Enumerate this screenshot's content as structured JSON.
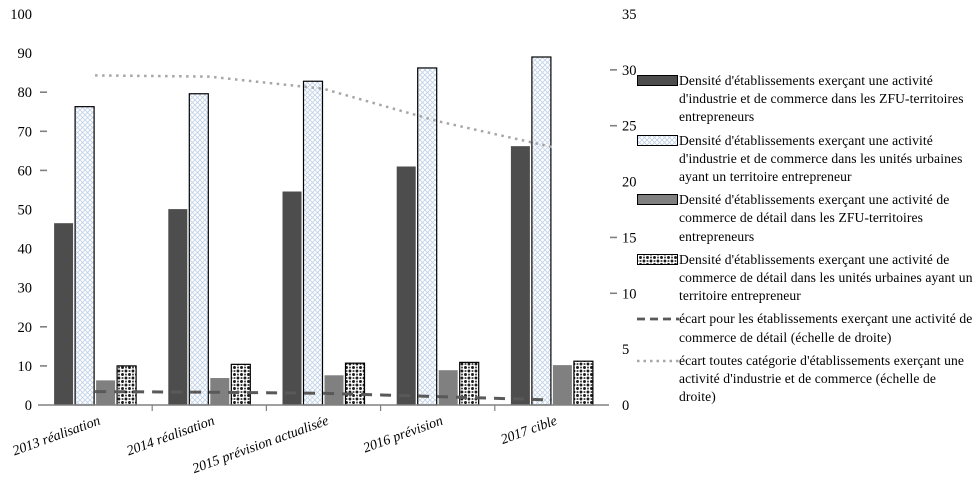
{
  "colors": {
    "bar_dark": "#4d4d4d",
    "bar_gray": "#808080",
    "crosshatch_blue": "#c3d3e6",
    "pattern_black": "#1a1a1a",
    "line_dashed": "#595959",
    "line_dotted": "#a6a6a6",
    "axis_line": "#808080",
    "text": "#000000"
  },
  "chart_data": {
    "type": "bar",
    "subtype": "grouped-bars-with-right-axis-lines",
    "title": "",
    "grid": false,
    "legend_position": "right",
    "categories": [
      "2013 réalisation",
      "2014 réalisation",
      "2015 prévision actualisée",
      "2016 prévision",
      "2017 cible"
    ],
    "left_axis": {
      "min": 0,
      "max": 100,
      "step": 10,
      "tick_labels": [
        0,
        10,
        20,
        30,
        40,
        50,
        60,
        70,
        80,
        90,
        100
      ],
      "ticks_with_dash": [
        10,
        20,
        60,
        70,
        80
      ]
    },
    "right_axis": {
      "min": 0,
      "max": 35,
      "step": 5,
      "tick_labels": [
        0,
        5,
        10,
        15,
        20,
        25,
        30,
        35
      ],
      "ticks_with_dash": [
        10,
        15,
        25,
        30
      ]
    },
    "bar_series": [
      {
        "name": "Densité d'établissements exerçant une activité d'industrie et de commerce dans les ZFU-territoires entrepreneurs",
        "swatch": "bar-dark",
        "values": [
          46.5,
          50.1,
          54.6,
          61.0,
          66.2
        ]
      },
      {
        "name": "Densité d'établissements exerçant une activité d'industrie et de commerce dans les unités urbaines ayant un territoire entrepreneur",
        "swatch": "bar-cross",
        "values": [
          76.3,
          79.6,
          82.8,
          86.2,
          89.0
        ]
      },
      {
        "name": "Densité d'établissements exerçant une activité de commerce de détail dans les ZFU-territoires entrepreneurs",
        "swatch": "bar-gray",
        "values": [
          6.3,
          6.9,
          7.6,
          8.9,
          10.2
        ]
      },
      {
        "name": "Densité d'établissements exerçant une activité de commerce de détail dans les unités urbaines ayant un territoire entrepreneur",
        "swatch": "bar-dots",
        "values": [
          10.0,
          10.4,
          10.7,
          10.9,
          11.2
        ]
      }
    ],
    "line_series": [
      {
        "name": "écart pour les établissements exerçant une activité de commerce de détail (échelle de droite)",
        "swatch": "line-dashed",
        "axis": "right",
        "values": [
          1.2,
          1.15,
          1.05,
          0.75,
          0.45
        ]
      },
      {
        "name": "écart toutes catégorie d'établissements exerçant une activité d'industrie et de commerce (échelle de droite)",
        "swatch": "line-dotted",
        "axis": "right",
        "values": [
          29.5,
          29.4,
          28.3,
          25.4,
          23.1
        ]
      }
    ]
  }
}
